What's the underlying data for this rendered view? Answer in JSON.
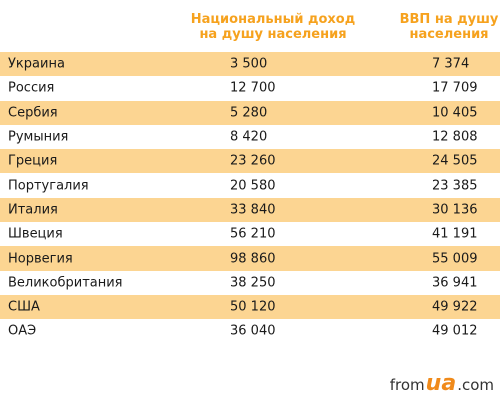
{
  "header": {
    "col_income": "Национальный доход на душу населения",
    "col_gdp": "ВВП на душу населения"
  },
  "rows": [
    {
      "country": "Украина",
      "income": "3 500",
      "gdp": "7 374"
    },
    {
      "country": "Россия",
      "income": "12 700",
      "gdp": "17 709"
    },
    {
      "country": "Сербия",
      "income": "5 280",
      "gdp": "10 405"
    },
    {
      "country": "Румыния",
      "income": "8 420",
      "gdp": "12 808"
    },
    {
      "country": "Греция",
      "income": "23 260",
      "gdp": "24 505"
    },
    {
      "country": "Португалия",
      "income": "20 580",
      "gdp": "23 385"
    },
    {
      "country": "Италия",
      "income": "33 840",
      "gdp": "30 136"
    },
    {
      "country": "Швеция",
      "income": "56 210",
      "gdp": "41 191"
    },
    {
      "country": "Норвегия",
      "income": "98 860",
      "gdp": "55 009"
    },
    {
      "country": "Великобритания",
      "income": "38 250",
      "gdp": "36 941"
    },
    {
      "country": "США",
      "income": "50 120",
      "gdp": "49 922"
    },
    {
      "country": "ОАЭ",
      "income": "36 040",
      "gdp": "49 012"
    }
  ],
  "logo": {
    "prefix": "from",
    "mark": "ua",
    "suffix": ".com"
  }
}
